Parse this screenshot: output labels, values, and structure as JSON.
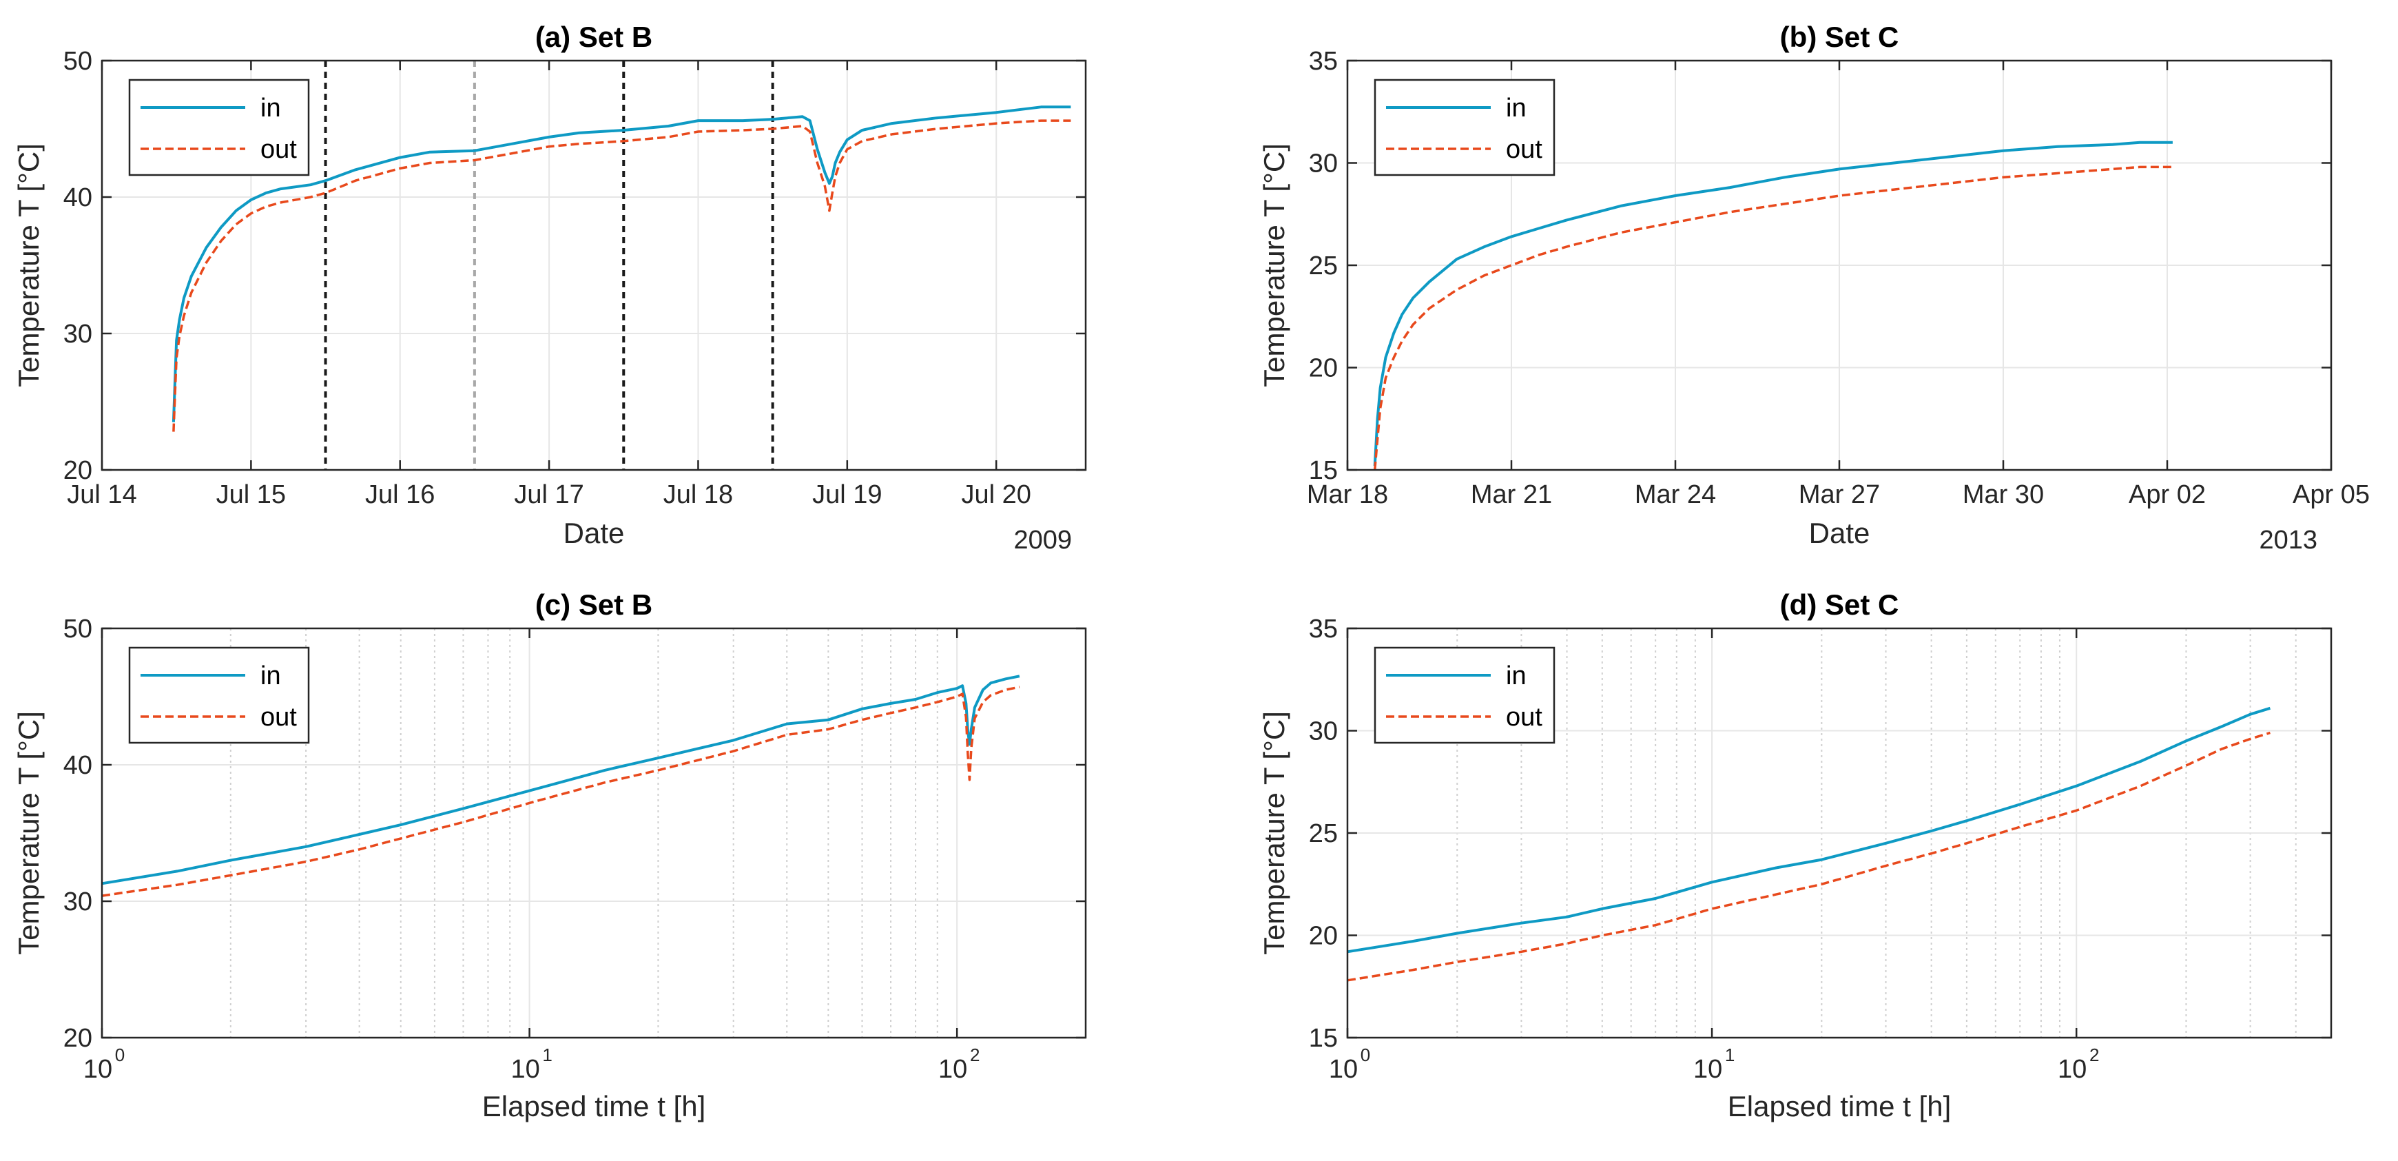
{
  "colors": {
    "in": "#0e9ac4",
    "out": "#e8491c",
    "grid": "#e6e6e6",
    "axis": "#262626"
  },
  "chart_data": [
    {
      "id": "a",
      "type": "line",
      "title": "(a) Set B",
      "xlabel": "Date",
      "ylabel": "Temperature T [°C]",
      "year_label": "2009",
      "xscale": "date",
      "xlim": [
        0,
        6.6
      ],
      "ylim": [
        20,
        50
      ],
      "xticks": [
        0,
        1,
        2,
        3,
        4,
        5,
        6
      ],
      "xticklabels": [
        "Jul 14",
        "Jul 15",
        "Jul 16",
        "Jul 17",
        "Jul 18",
        "Jul 19",
        "Jul 20"
      ],
      "yticks": [
        20,
        30,
        40,
        50
      ],
      "yticklabels": [
        "20",
        "30",
        "40",
        "50"
      ],
      "vlines": [
        {
          "x": 1.5,
          "color": "#1a1a1a"
        },
        {
          "x": 2.5,
          "color": "#a8a8a8"
        },
        {
          "x": 3.5,
          "color": "#1a1a1a"
        },
        {
          "x": 4.5,
          "color": "#1a1a1a"
        }
      ],
      "legend": {
        "position": "top-left",
        "entries": [
          "in",
          "out"
        ]
      },
      "series": [
        {
          "name": "in",
          "x": [
            0.48,
            0.49,
            0.5,
            0.52,
            0.55,
            0.6,
            0.7,
            0.8,
            0.9,
            1.0,
            1.1,
            1.2,
            1.4,
            1.5,
            1.7,
            2.0,
            2.2,
            2.5,
            2.8,
            3.0,
            3.2,
            3.5,
            3.8,
            4.0,
            4.3,
            4.5,
            4.7,
            4.75,
            4.8,
            4.85,
            4.88,
            4.9,
            4.92,
            4.95,
            5.0,
            5.1,
            5.3,
            5.6,
            6.0,
            6.3,
            6.5
          ],
          "values": [
            23.5,
            26.5,
            29.5,
            31.0,
            32.6,
            34.2,
            36.3,
            37.8,
            39.0,
            39.8,
            40.3,
            40.6,
            40.9,
            41.2,
            42.0,
            42.9,
            43.3,
            43.4,
            44.0,
            44.4,
            44.7,
            44.9,
            45.2,
            45.6,
            45.6,
            45.7,
            45.9,
            45.6,
            43.5,
            41.8,
            41.0,
            41.5,
            42.5,
            43.3,
            44.2,
            44.9,
            45.4,
            45.8,
            46.2,
            46.6,
            46.6
          ]
        },
        {
          "name": "out",
          "x": [
            0.48,
            0.49,
            0.5,
            0.52,
            0.55,
            0.6,
            0.7,
            0.8,
            0.9,
            1.0,
            1.1,
            1.2,
            1.4,
            1.5,
            1.7,
            2.0,
            2.2,
            2.5,
            2.8,
            3.0,
            3.2,
            3.5,
            3.8,
            4.0,
            4.3,
            4.5,
            4.7,
            4.75,
            4.8,
            4.85,
            4.88,
            4.9,
            4.92,
            4.95,
            5.0,
            5.1,
            5.3,
            5.6,
            6.0,
            6.3,
            6.5
          ],
          "values": [
            22.8,
            25.5,
            28.2,
            29.8,
            31.3,
            33.0,
            35.2,
            36.8,
            38.0,
            38.8,
            39.3,
            39.6,
            40.0,
            40.3,
            41.2,
            42.1,
            42.5,
            42.7,
            43.3,
            43.7,
            43.9,
            44.1,
            44.4,
            44.8,
            44.9,
            45.0,
            45.2,
            44.8,
            42.5,
            40.8,
            39.0,
            40.3,
            41.5,
            42.5,
            43.5,
            44.1,
            44.6,
            45.0,
            45.4,
            45.6,
            45.6
          ]
        }
      ]
    },
    {
      "id": "b",
      "type": "line",
      "title": "(b) Set C",
      "xlabel": "Date",
      "ylabel": "Temperature T [°C]",
      "year_label": "2013",
      "xscale": "date",
      "xlim": [
        0,
        18
      ],
      "ylim": [
        15,
        35
      ],
      "xticks": [
        0,
        3,
        6,
        9,
        12,
        15,
        18
      ],
      "xticklabels": [
        "Mar 18",
        "Mar 21",
        "Mar 24",
        "Mar 27",
        "Mar 30",
        "Apr 02",
        "Apr 05"
      ],
      "yticks": [
        15,
        20,
        25,
        30,
        35
      ],
      "yticklabels": [
        "15",
        "20",
        "25",
        "30",
        "35"
      ],
      "vlines": [],
      "legend": {
        "position": "top-left",
        "entries": [
          "in",
          "out"
        ]
      },
      "series": [
        {
          "name": "in",
          "x": [
            0.5,
            0.55,
            0.6,
            0.7,
            0.85,
            1.0,
            1.2,
            1.5,
            2.0,
            2.5,
            3.0,
            3.5,
            4.0,
            5.0,
            6.0,
            7.0,
            8.0,
            9.0,
            10.0,
            11.0,
            12.0,
            13.0,
            14.0,
            14.5,
            15.1
          ],
          "values": [
            15.2,
            17.5,
            19.0,
            20.5,
            21.7,
            22.6,
            23.4,
            24.2,
            25.3,
            25.9,
            26.4,
            26.8,
            27.2,
            27.9,
            28.4,
            28.8,
            29.3,
            29.7,
            30.0,
            30.3,
            30.6,
            30.8,
            30.9,
            31.0,
            31.0
          ]
        },
        {
          "name": "out",
          "x": [
            0.5,
            0.55,
            0.6,
            0.7,
            0.85,
            1.0,
            1.2,
            1.5,
            2.0,
            2.5,
            3.0,
            3.5,
            4.0,
            5.0,
            6.0,
            7.0,
            8.0,
            9.0,
            10.0,
            11.0,
            12.0,
            13.0,
            14.0,
            14.5,
            15.1
          ],
          "values": [
            15.0,
            16.5,
            18.0,
            19.5,
            20.5,
            21.3,
            22.1,
            22.9,
            23.8,
            24.5,
            25.0,
            25.5,
            25.9,
            26.6,
            27.1,
            27.6,
            28.0,
            28.4,
            28.7,
            29.0,
            29.3,
            29.5,
            29.7,
            29.8,
            29.8
          ]
        }
      ]
    },
    {
      "id": "c",
      "type": "line",
      "title": "(c) Set B",
      "xlabel": "Elapsed time t [h]",
      "ylabel": "Temperature T [°C]",
      "xscale": "log",
      "xlim": [
        1,
        200
      ],
      "ylim": [
        20,
        50
      ],
      "xticks": [
        1,
        10,
        100
      ],
      "xticklabels": [
        {
          "base": "10",
          "exp": "0"
        },
        {
          "base": "10",
          "exp": "1"
        },
        {
          "base": "10",
          "exp": "2"
        }
      ],
      "yticks": [
        20,
        30,
        40,
        50
      ],
      "yticklabels": [
        "20",
        "30",
        "40",
        "50"
      ],
      "legend": {
        "position": "top-left",
        "entries": [
          "in",
          "out"
        ]
      },
      "series": [
        {
          "name": "in",
          "x": [
            1,
            1.5,
            2,
            3,
            4,
            5,
            7,
            10,
            15,
            20,
            30,
            40,
            50,
            60,
            70,
            80,
            90,
            100,
            103,
            105,
            106,
            107,
            108,
            110,
            115,
            120,
            130,
            140
          ],
          "values": [
            31.3,
            32.2,
            33.0,
            34.0,
            34.9,
            35.6,
            36.8,
            38.1,
            39.6,
            40.5,
            41.8,
            43.0,
            43.3,
            44.1,
            44.5,
            44.8,
            45.3,
            45.6,
            45.8,
            44.5,
            42.5,
            41.5,
            42.6,
            44.2,
            45.5,
            46.0,
            46.3,
            46.5
          ]
        },
        {
          "name": "out",
          "x": [
            1,
            1.5,
            2,
            3,
            4,
            5,
            7,
            10,
            15,
            20,
            30,
            40,
            50,
            60,
            70,
            80,
            90,
            100,
            103,
            105,
            106,
            107,
            108,
            110,
            115,
            120,
            130,
            140
          ],
          "values": [
            30.4,
            31.2,
            31.9,
            32.9,
            33.8,
            34.6,
            35.8,
            37.2,
            38.7,
            39.6,
            41.0,
            42.2,
            42.6,
            43.3,
            43.8,
            44.2,
            44.6,
            45.0,
            45.2,
            43.5,
            40.8,
            38.9,
            41.2,
            43.4,
            44.6,
            45.1,
            45.5,
            45.7
          ]
        }
      ]
    },
    {
      "id": "d",
      "type": "line",
      "title": "(d) Set C",
      "xlabel": "Elapsed time t [h]",
      "ylabel": "Temperature T [°C]",
      "xscale": "log",
      "xlim": [
        1,
        500
      ],
      "ylim": [
        15,
        35
      ],
      "xticks": [
        1,
        10,
        100
      ],
      "xticklabels": [
        {
          "base": "10",
          "exp": "0"
        },
        {
          "base": "10",
          "exp": "1"
        },
        {
          "base": "10",
          "exp": "2"
        }
      ],
      "yticks": [
        15,
        20,
        25,
        30,
        35
      ],
      "yticklabels": [
        "15",
        "20",
        "25",
        "30",
        "35"
      ],
      "legend": {
        "position": "top-left",
        "entries": [
          "in",
          "out"
        ]
      },
      "series": [
        {
          "name": "in",
          "x": [
            1,
            1.5,
            2,
            3,
            4,
            5,
            7,
            10,
            15,
            20,
            30,
            40,
            50,
            70,
            100,
            150,
            200,
            250,
            300,
            340
          ],
          "values": [
            19.2,
            19.7,
            20.1,
            20.6,
            20.9,
            21.3,
            21.8,
            22.6,
            23.3,
            23.7,
            24.5,
            25.1,
            25.6,
            26.4,
            27.3,
            28.5,
            29.5,
            30.2,
            30.8,
            31.1
          ]
        },
        {
          "name": "out",
          "x": [
            1,
            1.5,
            2,
            3,
            4,
            5,
            7,
            10,
            15,
            20,
            30,
            40,
            50,
            70,
            100,
            150,
            200,
            250,
            300,
            340
          ],
          "values": [
            17.8,
            18.3,
            18.7,
            19.2,
            19.6,
            20.0,
            20.5,
            21.3,
            22.0,
            22.5,
            23.4,
            24.0,
            24.5,
            25.3,
            26.1,
            27.3,
            28.3,
            29.1,
            29.6,
            29.9
          ]
        }
      ]
    }
  ]
}
